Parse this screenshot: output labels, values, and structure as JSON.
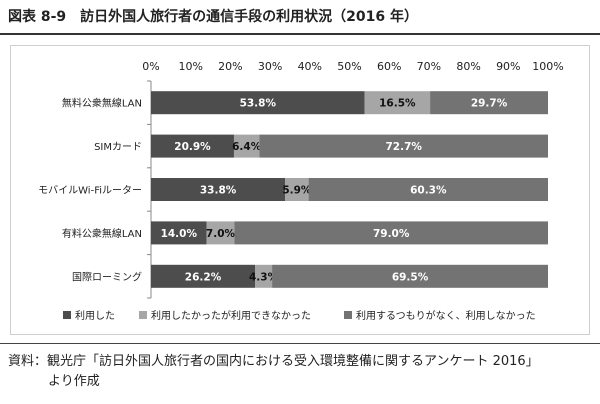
{
  "figure": {
    "title": "図表 8-9　訪日外国人旅行者の通信手段の利用状況（2016 年）",
    "source_line1": "資料：観光庁「訪日外国人旅行者の国内における受入環境整備に関するアンケート 2016」",
    "source_line2": "より作成"
  },
  "chart_data": {
    "type": "bar",
    "orientation": "horizontal",
    "stacked": true,
    "percent_scale": true,
    "title": "",
    "xlabel": "",
    "ylabel": "",
    "xlim": [
      0,
      100
    ],
    "x_ticks": [
      "0%",
      "10%",
      "20%",
      "30%",
      "40%",
      "50%",
      "60%",
      "70%",
      "80%",
      "90%",
      "100%"
    ],
    "x_axis_position": "top",
    "grid": false,
    "legend_position": "bottom",
    "categories": [
      "無料公衆無線LAN",
      "SIMカード",
      "モバイルWi-Fiルーター",
      "有料公衆無線LAN",
      "国際ローミング"
    ],
    "series": [
      {
        "name": "利用した",
        "color": "#4d4d4d",
        "values": [
          53.8,
          20.9,
          33.8,
          14.0,
          26.2
        ],
        "labels": [
          "53.8%",
          "20.9%",
          "33.8%",
          "14.0%",
          "26.2%"
        ]
      },
      {
        "name": "利用したかったが利用できなかった",
        "color": "#a6a6a6",
        "values": [
          16.5,
          6.4,
          5.9,
          7.0,
          4.3
        ],
        "labels": [
          "16.5%",
          "6.4%",
          "5.9%",
          "7.0%",
          "4.3%"
        ]
      },
      {
        "name": "利用するつもりがなく、利用しなかった",
        "color": "#737373",
        "values": [
          29.7,
          72.7,
          60.3,
          79.0,
          69.5
        ],
        "labels": [
          "29.7%",
          "72.7%",
          "60.3%",
          "79.0%",
          "69.5%"
        ]
      }
    ]
  }
}
